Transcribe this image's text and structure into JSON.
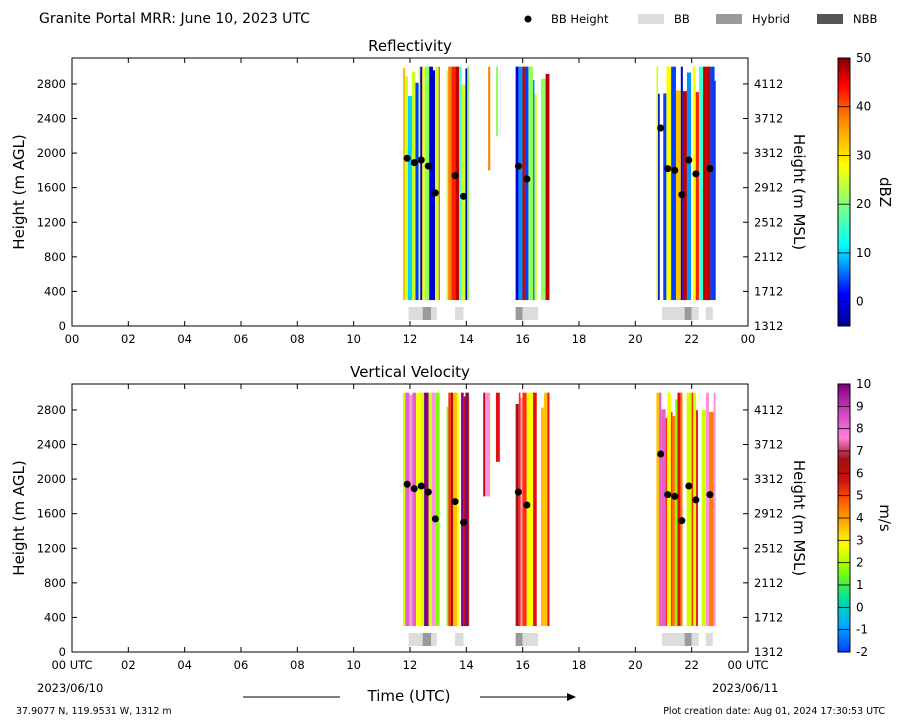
{
  "header": {
    "title": "Granite Portal MRR:  June 10, 2023 UTC",
    "legend": [
      {
        "label": "BB Height",
        "kind": "dot",
        "color": "#000000"
      },
      {
        "label": "BB",
        "kind": "box",
        "color": "#dcdcdc"
      },
      {
        "label": "Hybrid",
        "kind": "box",
        "color": "#9a9a9a"
      },
      {
        "label": "NBB",
        "kind": "box",
        "color": "#555555"
      }
    ]
  },
  "footer": {
    "location": "37.9077 N, 119.9531 W, 1312 m",
    "created": "Plot creation date: Aug 01, 2024 17:30:53 UTC",
    "start_date": "2023/06/10",
    "end_date": "2023/06/11",
    "xlabel": "Time (UTC)"
  },
  "chart_data": [
    {
      "type": "heatmap",
      "title": "Reflectivity",
      "ylabel": "Height (m AGL)",
      "y2label": "Height (m MSL)",
      "xlim": [
        0,
        24
      ],
      "ylim": [
        0,
        3100
      ],
      "xticks": [
        "00",
        "02",
        "04",
        "06",
        "08",
        "10",
        "12",
        "14",
        "16",
        "18",
        "20",
        "22",
        "00"
      ],
      "yticks": [
        0,
        400,
        800,
        1200,
        1600,
        2000,
        2400,
        2800
      ],
      "y2ticks": [
        1312,
        1712,
        2112,
        2512,
        2912,
        3312,
        3712,
        4112
      ],
      "colorbar": {
        "label": "dBZ",
        "min": -5,
        "max": 50,
        "ticks": [
          0,
          10,
          20,
          30,
          40,
          50
        ]
      },
      "grid": false,
      "bb_height": {
        "x": [
          11.9,
          12.15,
          12.4,
          12.65,
          12.9,
          13.6,
          13.9,
          15.85,
          16.15,
          20.9,
          21.15,
          21.4,
          21.65,
          21.9,
          22.15,
          22.65
        ],
        "y": [
          1940,
          1890,
          1920,
          1850,
          1540,
          1740,
          1500,
          1850,
          1700,
          2290,
          1820,
          1800,
          1520,
          1920,
          1760,
          1820
        ]
      },
      "bb_type": [
        {
          "start": 11.95,
          "end": 12.45,
          "type": "BB"
        },
        {
          "start": 12.45,
          "end": 12.75,
          "type": "Hybrid"
        },
        {
          "start": 12.75,
          "end": 12.95,
          "type": "BB"
        },
        {
          "start": 13.6,
          "end": 13.9,
          "type": "BB"
        },
        {
          "start": 15.75,
          "end": 16.0,
          "type": "Hybrid"
        },
        {
          "start": 16.0,
          "end": 16.55,
          "type": "BB"
        },
        {
          "start": 20.95,
          "end": 21.75,
          "type": "BB"
        },
        {
          "start": 21.75,
          "end": 22.0,
          "type": "Hybrid"
        },
        {
          "start": 22.0,
          "end": 22.25,
          "type": "BB"
        },
        {
          "start": 22.5,
          "end": 22.75,
          "type": "BB"
        }
      ],
      "echo_segments": [
        {
          "start": 11.75,
          "end": 13.05,
          "base": 300,
          "top": 3000
        },
        {
          "start": 13.3,
          "end": 14.1,
          "base": 300,
          "top": 3000
        },
        {
          "start": 14.6,
          "end": 14.85,
          "base": 1800,
          "top": 3000
        },
        {
          "start": 15.05,
          "end": 15.2,
          "base": 2200,
          "top": 3000
        },
        {
          "start": 15.75,
          "end": 16.5,
          "base": 300,
          "top": 3000
        },
        {
          "start": 16.65,
          "end": 16.95,
          "base": 300,
          "top": 3000
        },
        {
          "start": 20.75,
          "end": 22.85,
          "base": 300,
          "top": 3000
        }
      ]
    },
    {
      "type": "heatmap",
      "title": "Vertical Velocity",
      "ylabel": "Height (m AGL)",
      "y2label": "Height (m MSL)",
      "xlim": [
        0,
        24
      ],
      "ylim": [
        0,
        3100
      ],
      "xticks": [
        "00 UTC",
        "02",
        "04",
        "06",
        "08",
        "10",
        "12",
        "14",
        "16",
        "18",
        "20",
        "22",
        "00 UTC"
      ],
      "yticks": [
        0,
        400,
        800,
        1200,
        1600,
        2000,
        2400,
        2800
      ],
      "y2ticks": [
        1312,
        1712,
        2112,
        2512,
        2912,
        3312,
        3712,
        4112
      ],
      "colorbar": {
        "label": "m/s",
        "min": -2,
        "max": 10,
        "ticks": [
          -2,
          -1,
          0,
          1,
          2,
          3,
          4,
          5,
          6,
          7,
          8,
          9,
          10
        ]
      },
      "grid": false,
      "bb_height": {
        "x": [
          11.9,
          12.15,
          12.4,
          12.65,
          12.9,
          13.6,
          13.9,
          15.85,
          16.15,
          20.9,
          21.15,
          21.4,
          21.65,
          21.9,
          22.15,
          22.65
        ],
        "y": [
          1940,
          1890,
          1920,
          1850,
          1540,
          1740,
          1500,
          1850,
          1700,
          2290,
          1820,
          1800,
          1520,
          1920,
          1760,
          1820
        ]
      },
      "bb_type": [
        {
          "start": 11.95,
          "end": 12.45,
          "type": "BB"
        },
        {
          "start": 12.45,
          "end": 12.75,
          "type": "Hybrid"
        },
        {
          "start": 12.75,
          "end": 12.95,
          "type": "BB"
        },
        {
          "start": 13.6,
          "end": 13.9,
          "type": "BB"
        },
        {
          "start": 15.75,
          "end": 16.0,
          "type": "Hybrid"
        },
        {
          "start": 16.0,
          "end": 16.55,
          "type": "BB"
        },
        {
          "start": 20.95,
          "end": 21.75,
          "type": "BB"
        },
        {
          "start": 21.75,
          "end": 22.0,
          "type": "Hybrid"
        },
        {
          "start": 22.0,
          "end": 22.25,
          "type": "BB"
        },
        {
          "start": 22.5,
          "end": 22.75,
          "type": "BB"
        }
      ],
      "echo_segments": [
        {
          "start": 11.75,
          "end": 13.05,
          "base": 300,
          "top": 3000
        },
        {
          "start": 13.3,
          "end": 14.1,
          "base": 300,
          "top": 3000
        },
        {
          "start": 14.6,
          "end": 14.85,
          "base": 1800,
          "top": 3000
        },
        {
          "start": 15.05,
          "end": 15.2,
          "base": 2200,
          "top": 3000
        },
        {
          "start": 15.75,
          "end": 16.5,
          "base": 300,
          "top": 3000
        },
        {
          "start": 16.65,
          "end": 16.95,
          "base": 300,
          "top": 3000
        },
        {
          "start": 20.75,
          "end": 22.85,
          "base": 300,
          "top": 3000
        }
      ]
    }
  ]
}
